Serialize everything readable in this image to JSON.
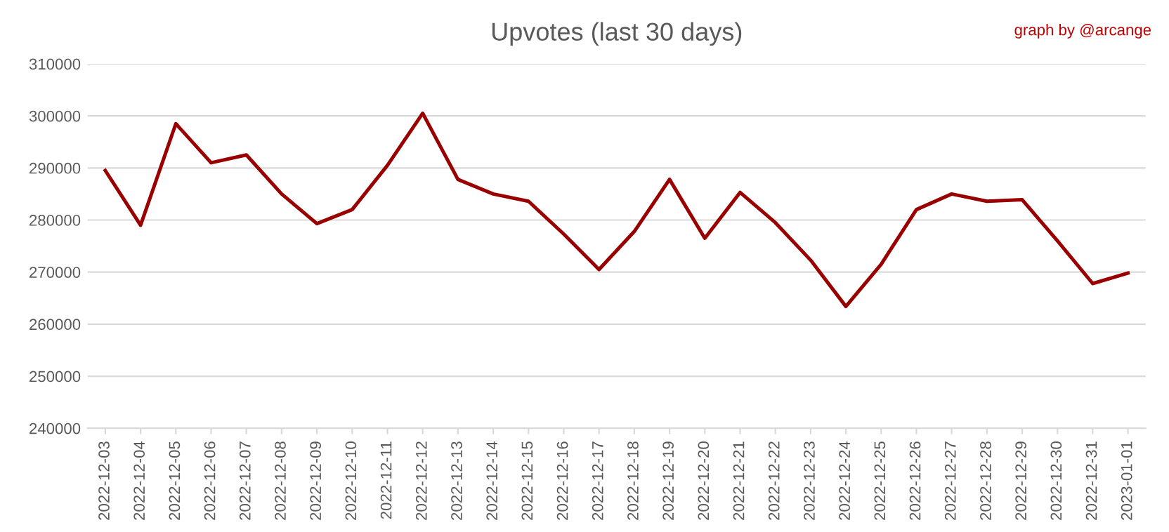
{
  "chart_data": {
    "type": "line",
    "title": "Upvotes (last 30 days)",
    "annotations": [
      "graph by @arcange"
    ],
    "categories": [
      "2022-12-03",
      "2022-12-04",
      "2022-12-05",
      "2022-12-06",
      "2022-12-07",
      "2022-12-08",
      "2022-12-09",
      "2022-12-10",
      "2022-12-11",
      "2022-12-12",
      "2022-12-13",
      "2022-12-14",
      "2022-12-15",
      "2022-12-16",
      "2022-12-17",
      "2022-12-18",
      "2022-12-19",
      "2022-12-20",
      "2022-12-21",
      "2022-12-22",
      "2022-12-23",
      "2022-12-24",
      "2022-12-25",
      "2022-12-26",
      "2022-12-27",
      "2022-12-28",
      "2022-12-29",
      "2022-12-30",
      "2022-12-31",
      "2023-01-01"
    ],
    "series": [
      {
        "color": "#990000",
        "values": [
          289500,
          279000,
          298500,
          291000,
          292500,
          285000,
          279300,
          282000,
          290500,
          300500,
          287800,
          285000,
          283600,
          277300,
          270500,
          277800,
          287800,
          276500,
          285300,
          279500,
          272300,
          263400,
          271500,
          282000,
          285000,
          283600,
          283900,
          276000,
          267800,
          269800
        ]
      }
    ],
    "ylim": [
      240000,
      310000
    ],
    "yticks": [
      240000,
      250000,
      260000,
      270000,
      280000,
      290000,
      300000,
      310000
    ],
    "grid": "y",
    "legend": false,
    "marker": "none",
    "line_style": "solid"
  }
}
